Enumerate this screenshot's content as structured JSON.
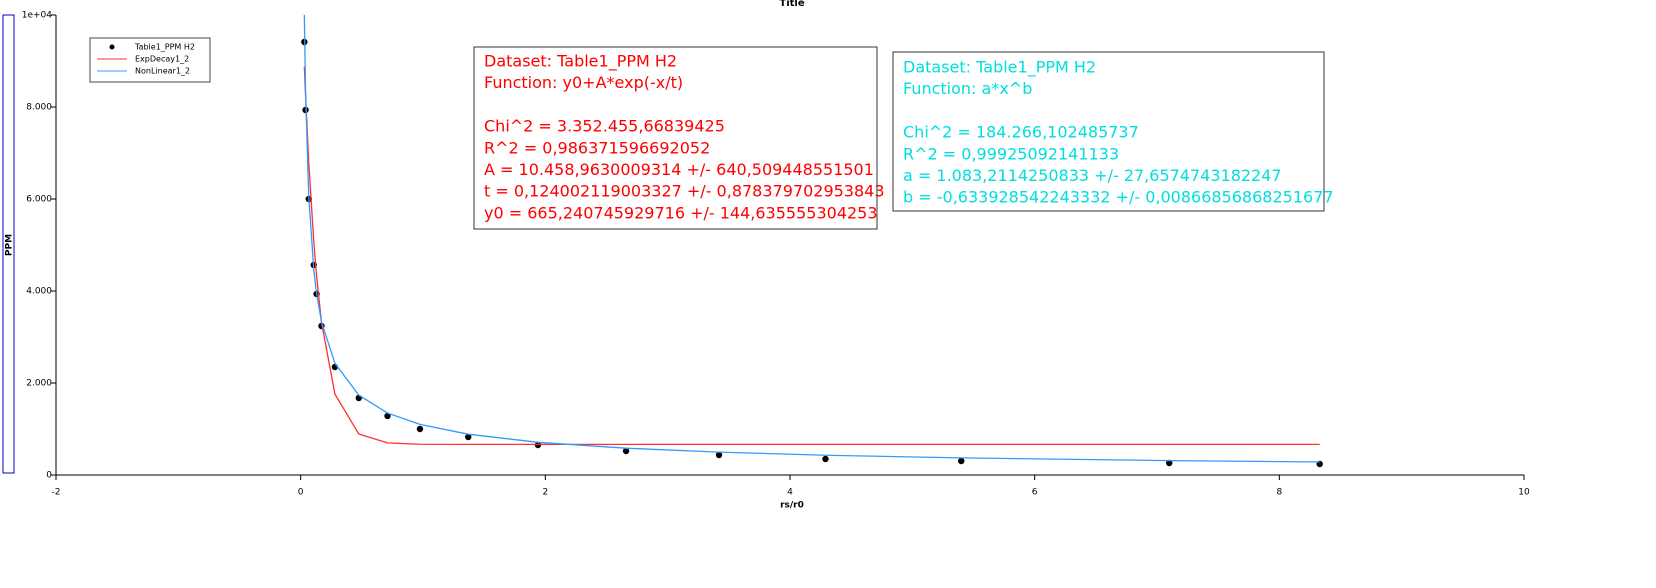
{
  "chart_data": {
    "type": "scatter",
    "title": "Title",
    "xlabel": "rs/r0",
    "ylabel": "PPM",
    "xlim": [
      -2,
      10
    ],
    "ylim": [
      0,
      10000
    ],
    "xticks": [
      -2,
      0,
      2,
      4,
      6,
      8,
      10
    ],
    "yticks": [
      0,
      {
        "value": 2000,
        "label": "2.000"
      },
      {
        "value": 4000,
        "label": "4.000"
      },
      {
        "value": 6000,
        "label": "6.000"
      },
      {
        "value": 8000,
        "label": "8.000"
      },
      {
        "value": 10000,
        "label": "1e+04"
      }
    ],
    "x": [
      0.03,
      0.04,
      0.066,
      0.107,
      0.13,
      0.17,
      0.28,
      0.475,
      0.71,
      0.975,
      1.37,
      1.94,
      2.66,
      3.42,
      4.29,
      5.4,
      7.1,
      8.33
    ],
    "series": [
      {
        "name": "Table1_PPM H2",
        "color": "#000000",
        "style": "marker",
        "values": [
          9413,
          7935,
          6000,
          4565,
          3935,
          3239,
          2348,
          1674,
          1283,
          1000,
          826,
          652,
          522,
          435,
          348,
          304,
          261,
          239
        ]
      },
      {
        "name": "ExpDecay1_2",
        "color": "#ff3030",
        "style": "line",
        "values": [
          8875,
          8240,
          6806,
          5078,
          4332,
          3321,
          1759,
          892,
          699,
          669,
          665,
          665,
          665,
          665,
          665,
          665,
          665,
          665
        ]
      },
      {
        "name": "NonLinear1_2",
        "color": "#3399ff",
        "style": "line",
        "values": [
          10004,
          8335,
          6068,
          4467,
          3948,
          3331,
          2428,
          1737,
          1346,
          1101,
          887,
          711,
          583,
          497,
          430,
          372,
          313,
          283
        ]
      }
    ],
    "annotations": [
      {
        "color": "#ff0000",
        "paragraphs": [
          [
            "Dataset: Table1_PPM H2",
            "Function: y0+A*exp(-x/t)"
          ],
          [
            "Chi^2 = 3.352.455,66839425",
            "R^2 = 0,986371596692052",
            "A = 10.458,9630009314 +/- 640,509448551501",
            "t = 0,124002119003327 +/- 0,878379702953843",
            "y0 = 665,240745929716 +/- 144,635555304253"
          ]
        ]
      },
      {
        "color": "#00dede",
        "paragraphs": [
          [
            "Dataset: Table1_PPM H2",
            "Function: a*x^b"
          ],
          [
            "Chi^2 = 184.266,102485737",
            "R^2 = 0,99925092141133",
            "a = 1.083,2114250833 +/- 27,6574743182247",
            "b = -0,633928542243332 +/- 0,00866856868251677"
          ]
        ]
      }
    ]
  }
}
